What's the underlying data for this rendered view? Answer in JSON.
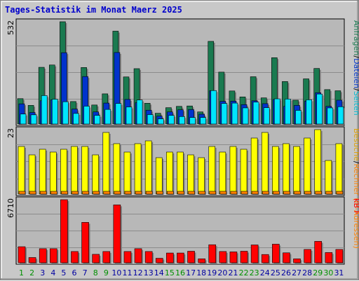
{
  "title": "Tages-Statistik im Monat Maerz 2025",
  "colors": {
    "background": "#c8c8c8",
    "panel": "#b8b8b8",
    "hits": "#1a7a50",
    "files": "#0033cc",
    "pages": "#00e5ff",
    "visits": "#ffff00",
    "sites": "#ff8000",
    "kbytes": "#ff0000",
    "weekend_label": "#009000",
    "weekday_label": "#0000a0",
    "title": "#0000cc"
  },
  "chart_data": [
    {
      "type": "bar",
      "panel": "requests",
      "ymax_label": "532",
      "ylim": [
        0,
        532
      ],
      "legend": [
        {
          "text": "Anfragen",
          "color": "#1a7a50"
        },
        {
          "text": "/",
          "color": "#000000"
        },
        {
          "text": "Dateien",
          "color": "#0033cc"
        },
        {
          "text": "/",
          "color": "#000000"
        },
        {
          "text": "Seiten",
          "color": "#00bcd4"
        }
      ],
      "categories": [
        "1",
        "2",
        "3",
        "4",
        "5",
        "6",
        "7",
        "8",
        "9",
        "10",
        "11",
        "12",
        "13",
        "14",
        "15",
        "16",
        "17",
        "18",
        "19",
        "20",
        "21",
        "22",
        "23",
        "24",
        "25",
        "26",
        "27",
        "28",
        "29",
        "30",
        "31"
      ],
      "series": [
        {
          "name": "Anfragen",
          "values": [
            132,
            97,
            295,
            307,
            532,
            117,
            294,
            99,
            157,
            483,
            245,
            288,
            108,
            56,
            85,
            92,
            94,
            63,
            430,
            270,
            172,
            141,
            246,
            136,
            345,
            221,
            124,
            235,
            289,
            179,
            173
          ]
        },
        {
          "name": "Dateien",
          "values": [
            105,
            60,
            121,
            126,
            371,
            78,
            247,
            63,
            109,
            372,
            128,
            111,
            72,
            41,
            63,
            74,
            75,
            51,
            173,
            118,
            119,
            101,
            121,
            106,
            128,
            92,
            97,
            119,
            163,
            92,
            124
          ]
        },
        {
          "name": "Seiten",
          "values": [
            52,
            48,
            148,
            129,
            116,
            55,
            93,
            45,
            76,
            107,
            89,
            125,
            49,
            27,
            45,
            39,
            34,
            34,
            174,
            107,
            109,
            84,
            114,
            85,
            131,
            130,
            71,
            126,
            156,
            84,
            90
          ]
        }
      ]
    },
    {
      "type": "bar",
      "panel": "visits",
      "ymax_label": "23",
      "ylim": [
        0,
        23
      ],
      "legend": [
        {
          "text": "Besuche",
          "color": "#e0a000"
        },
        {
          "text": "/",
          "color": "#000000"
        },
        {
          "text": "Rechner (IP-Adressen)",
          "color": "#ff8000"
        }
      ],
      "categories": [
        "1",
        "2",
        "3",
        "4",
        "5",
        "6",
        "7",
        "8",
        "9",
        "10",
        "11",
        "12",
        "13",
        "14",
        "15",
        "16",
        "17",
        "18",
        "19",
        "20",
        "21",
        "22",
        "23",
        "24",
        "25",
        "26",
        "27",
        "28",
        "29",
        "30",
        "31"
      ],
      "series": [
        {
          "name": "Besuche",
          "values": [
            17,
            14,
            16,
            15,
            16,
            17,
            17,
            14,
            22,
            18,
            15,
            18,
            19,
            13,
            15,
            15,
            14,
            13,
            17,
            15,
            17,
            16,
            20,
            22,
            17,
            18,
            17,
            20,
            23,
            12,
            18
          ]
        },
        {
          "name": "Rechner (IP-Adressen)",
          "values": [
            1,
            1,
            1,
            1,
            1,
            1,
            1,
            1,
            1,
            1,
            1,
            1,
            1,
            1,
            1,
            1,
            1,
            1,
            1,
            1,
            1,
            1,
            1,
            1,
            1,
            1,
            1,
            1,
            1,
            1,
            1
          ]
        }
      ]
    },
    {
      "type": "bar",
      "panel": "kbytes",
      "ymax_label": "6710",
      "ylim": [
        0,
        6710
      ],
      "legend": [
        {
          "text": "kB F",
          "color": "#ff0000"
        }
      ],
      "categories": [
        "1",
        "2",
        "3",
        "4",
        "5",
        "6",
        "7",
        "8",
        "9",
        "10",
        "11",
        "12",
        "13",
        "14",
        "15",
        "16",
        "17",
        "18",
        "19",
        "20",
        "21",
        "22",
        "23",
        "24",
        "25",
        "26",
        "27",
        "28",
        "29",
        "30",
        "31"
      ],
      "series": [
        {
          "name": "kB F",
          "values": [
            1710,
            560,
            1500,
            1500,
            6710,
            1200,
            4300,
            900,
            1200,
            6160,
            1200,
            1500,
            1200,
            480,
            1040,
            1040,
            1230,
            420,
            1920,
            1200,
            1160,
            1230,
            1900,
            880,
            1980,
            1060,
            420,
            1420,
            2280,
            1090,
            1420
          ]
        }
      ]
    }
  ]
}
